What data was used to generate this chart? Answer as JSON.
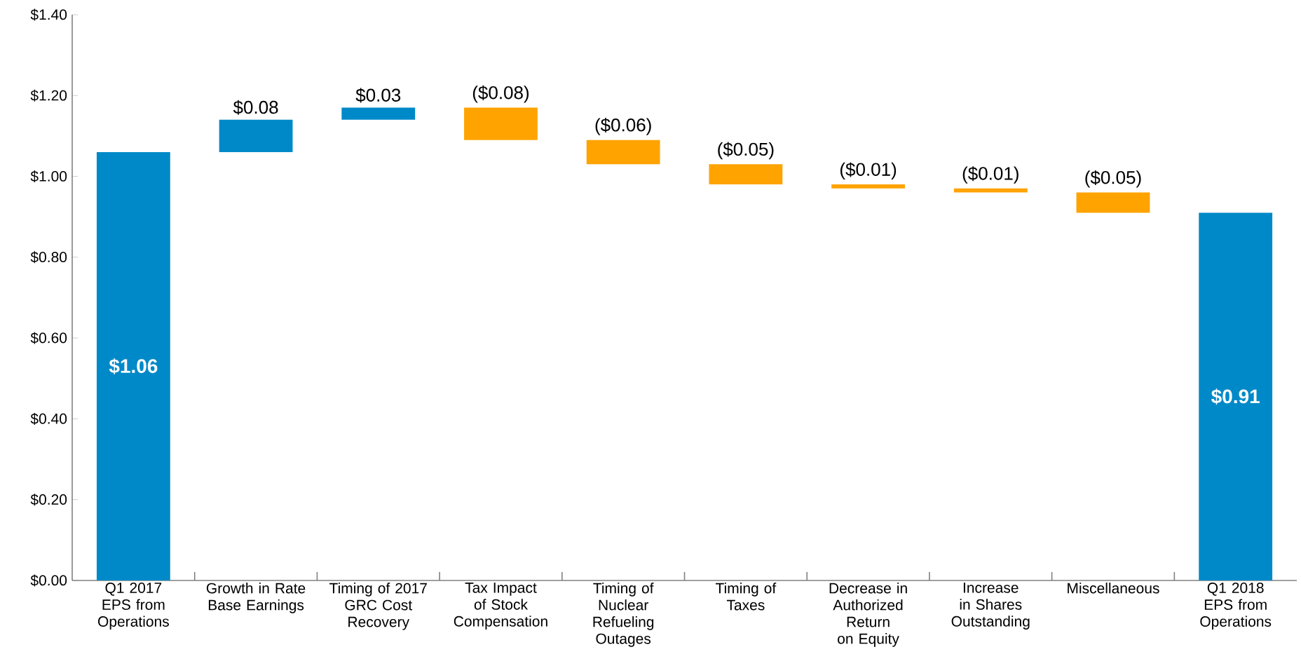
{
  "chart_data": {
    "type": "bar",
    "categories": [
      "Q1 2017 EPS from Operations",
      "Growth in Rate Base Earnings",
      "Timing of 2017 GRC Cost Recovery",
      "Tax Impact of Stock Compensation",
      "Timing of Nuclear Refueling Outages",
      "Timing of Taxes",
      "Decrease in Authorized Return on Equity",
      "Increase in Shares Outstanding",
      "Miscellaneous",
      "Q1 2018 EPS from Operations"
    ],
    "values": [
      1.06,
      0.08,
      0.03,
      -0.08,
      -0.06,
      -0.05,
      -0.01,
      -0.01,
      -0.05,
      0.91
    ],
    "base": [
      0,
      1.06,
      1.14,
      1.17,
      1.09,
      1.03,
      0.98,
      0.97,
      0.96,
      0
    ],
    "colors": [
      "#0089c8",
      "#0089c8",
      "#0089c8",
      "#ffa300",
      "#ffa300",
      "#ffa300",
      "#ffa300",
      "#ffa300",
      "#ffa300",
      "#0089c8"
    ],
    "value_labels": [
      "$1.06",
      "$0.08",
      "$0.03",
      "($0.08)",
      "($0.06)",
      "($0.05)",
      "($0.01)",
      "($0.01)",
      "($0.05)",
      "$0.91"
    ],
    "ylim": [
      0,
      1.4
    ],
    "yticks": [
      {
        "value": 0,
        "label": "$0.00"
      },
      {
        "value": 0.2,
        "label": "$0.20"
      },
      {
        "value": 0.4,
        "label": "$0.40"
      },
      {
        "value": 0.6,
        "label": "$0.60"
      },
      {
        "value": 0.8,
        "label": "$0.80"
      },
      {
        "value": 1.0,
        "label": "$1.00"
      },
      {
        "value": 1.2,
        "label": "$1.20"
      },
      {
        "value": 1.4,
        "label": "$1.40"
      }
    ],
    "grid": false
  }
}
